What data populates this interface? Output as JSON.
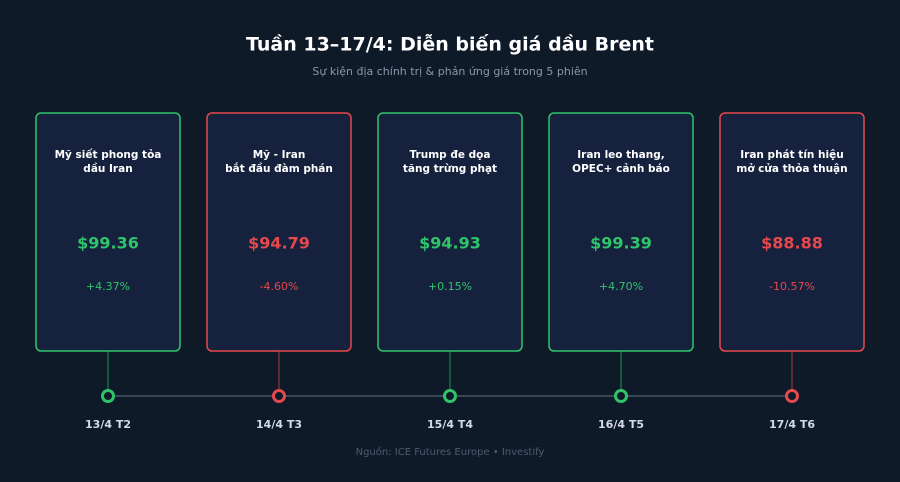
{
  "header": {
    "title": "Tuần 13–17/4: Diễn biến giá dầu Brent",
    "subtitle": "Sự kiện địa chính trị & phản ứng giá trong 5 phiên"
  },
  "cards": [
    {
      "label": [
        "Mỹ siết phong tỏa",
        "dầu Iran"
      ],
      "price": "$99.36",
      "change": "+4.37%",
      "date": "13/4 T2",
      "color": "#2fc46a"
    },
    {
      "label": [
        "Mỹ - Iran",
        "bắt đầu đàm phán"
      ],
      "price": "$94.79",
      "change": "-4.60%",
      "date": "14/4 T3",
      "color": "#e5484d"
    },
    {
      "label": [
        "Trump đe dọa",
        "tăng trừng phạt"
      ],
      "price": "$94.93",
      "change": "+0.15%",
      "date": "15/4 T4",
      "color": "#2fc46a"
    },
    {
      "label": [
        "Iran leo thang,",
        "OPEC+ cảnh báo"
      ],
      "price": "$99.39",
      "change": "+4.70%",
      "date": "16/4 T5",
      "color": "#2fc46a"
    },
    {
      "label": [
        "Iran phát tín hiệu",
        "mở cửa thỏa thuận"
      ],
      "price": "$88.88",
      "change": "-10.57%",
      "date": "17/4 T6",
      "color": "#e5484d"
    }
  ],
  "footer": {
    "source": "Nguồn: ICE Futures Europe • Investify"
  }
}
